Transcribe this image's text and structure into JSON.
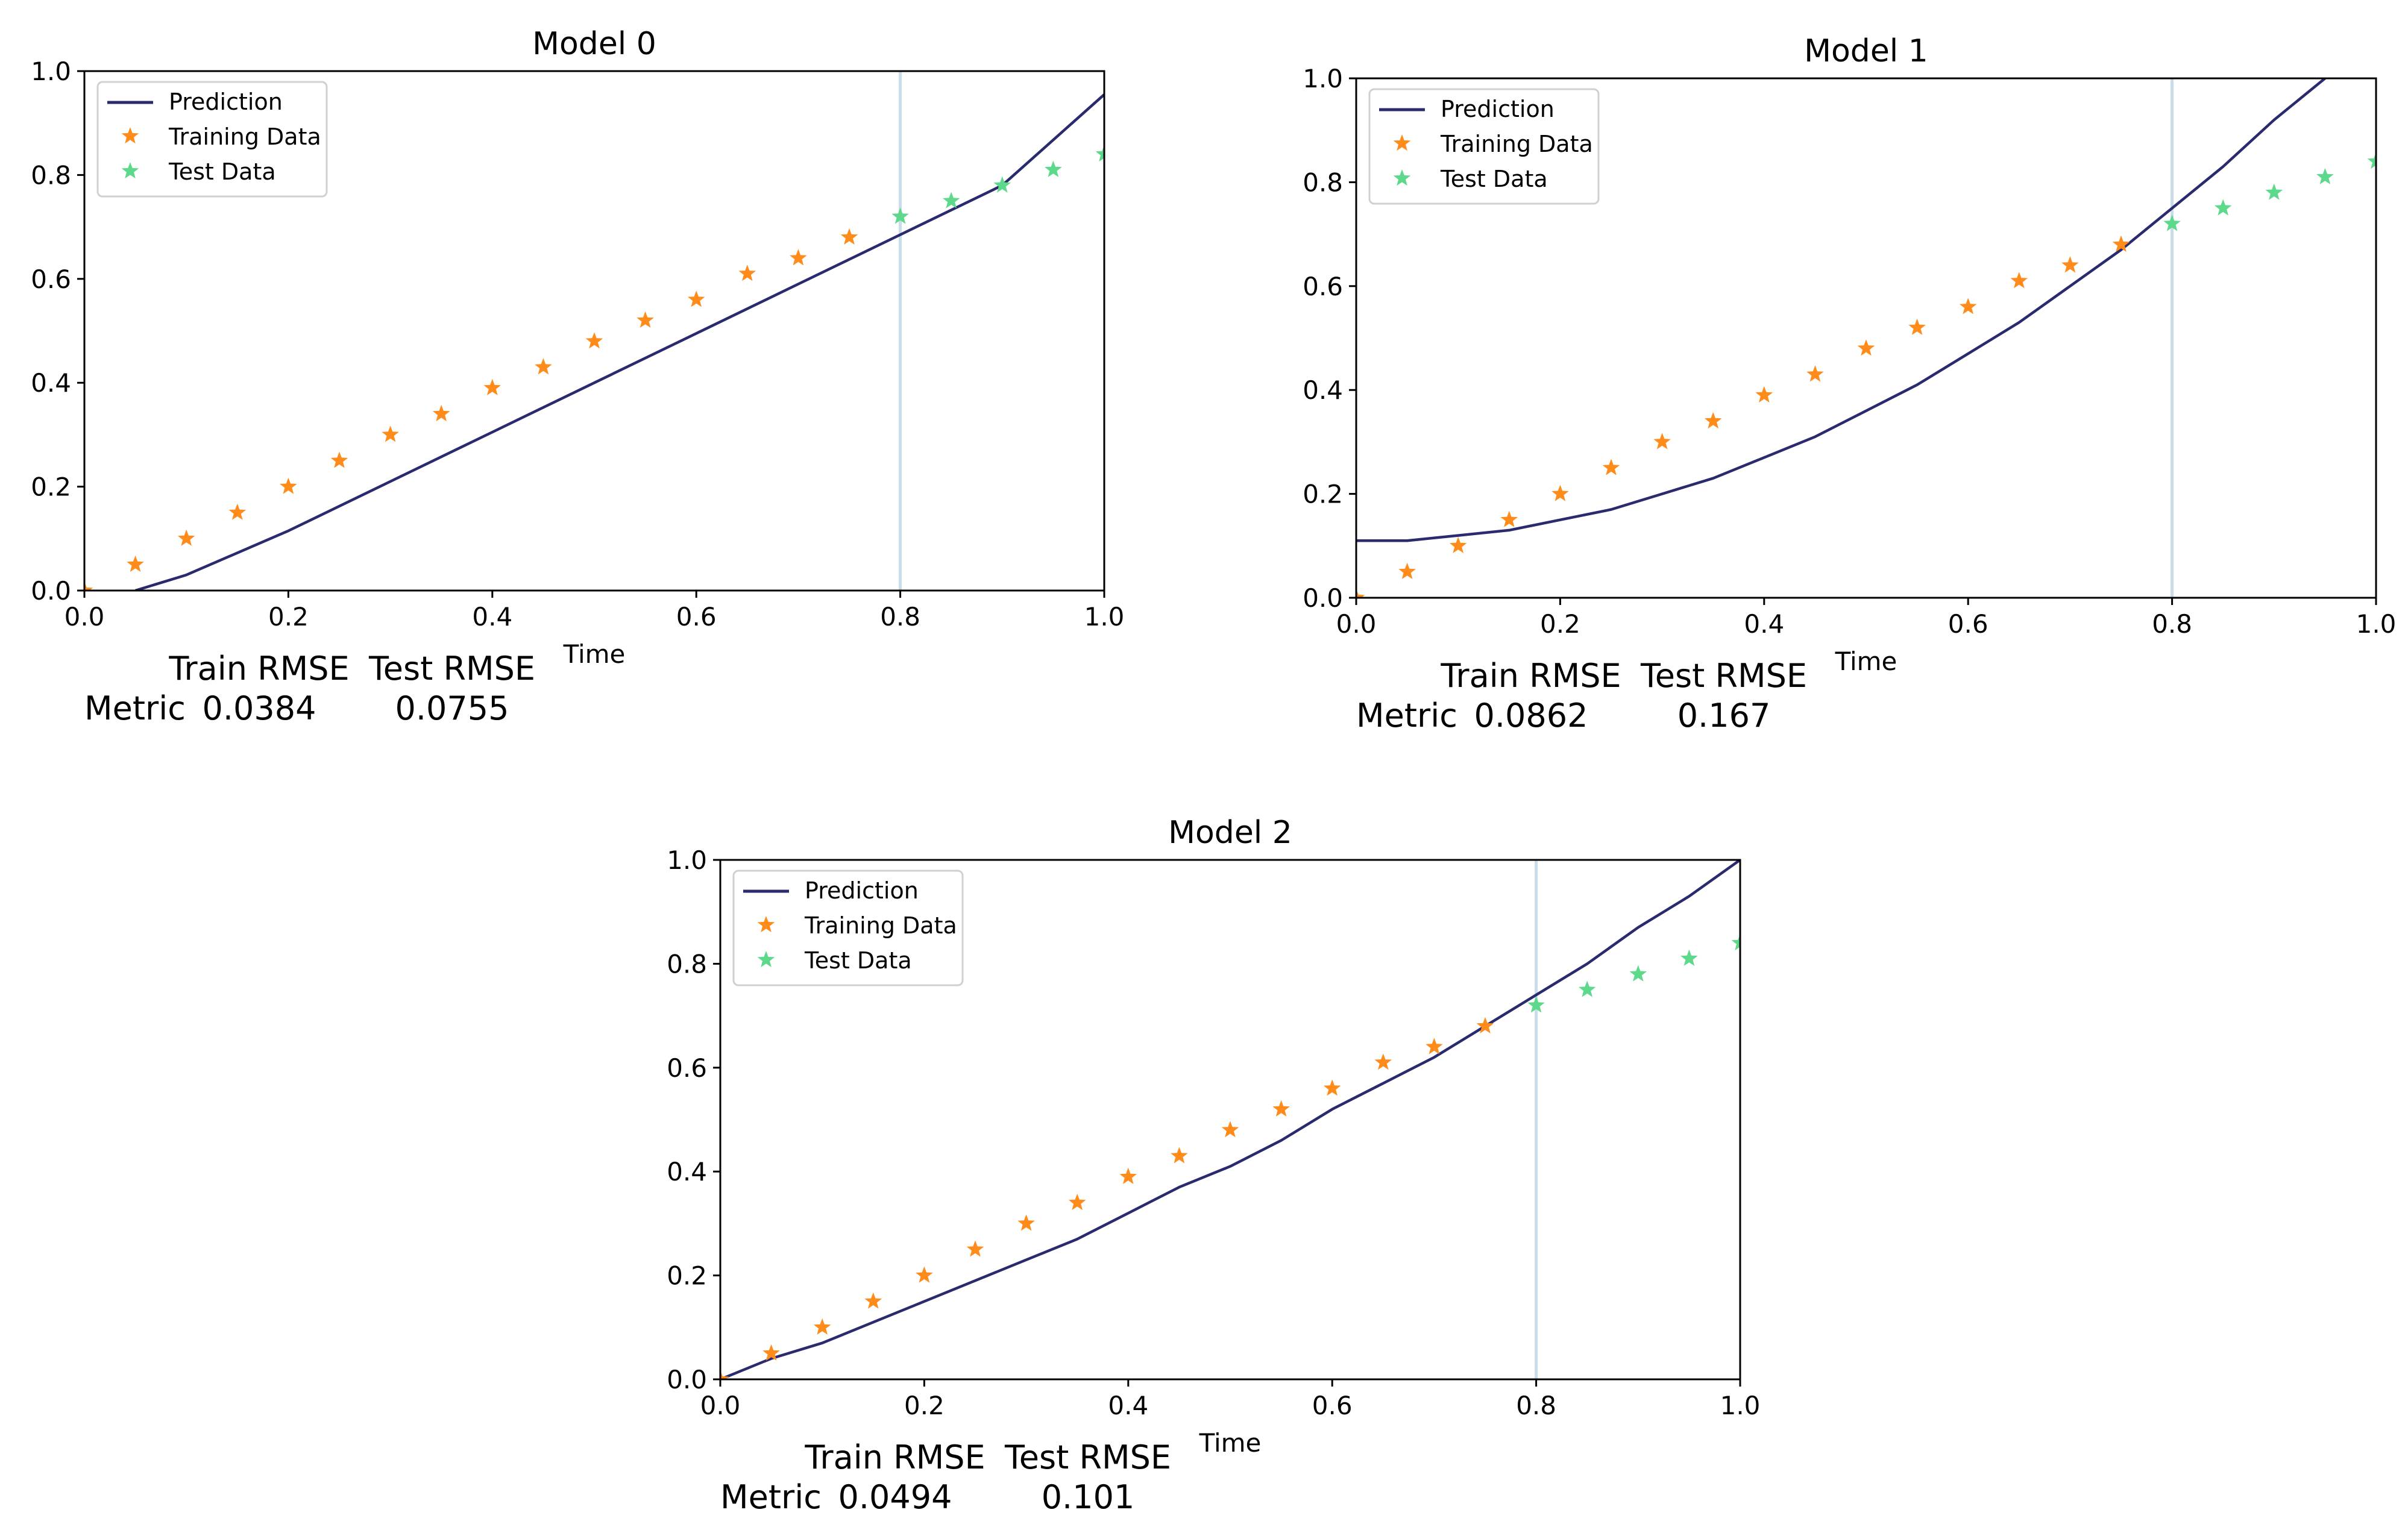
{
  "chart_data": [
    {
      "type": "line",
      "title": "Model 0",
      "xlabel": "Time",
      "ylabel": "",
      "xlim": [
        0.0,
        1.0
      ],
      "ylim": [
        0.0,
        1.0
      ],
      "xticks": [
        "0.0",
        "0.2",
        "0.4",
        "0.6",
        "0.8",
        "1.0"
      ],
      "yticks": [
        "0.0",
        "0.2",
        "0.4",
        "0.6",
        "0.8",
        "1.0"
      ],
      "split_x": 0.8,
      "legend": {
        "location": "upper-left",
        "entries": [
          "Prediction",
          "Training Data",
          "Test Data"
        ]
      },
      "series": [
        {
          "name": "Prediction",
          "kind": "line",
          "color": "#2a2a6e",
          "x": [
            0.05,
            0.1,
            0.2,
            0.3,
            0.4,
            0.5,
            0.6,
            0.7,
            0.8,
            0.9,
            1.0
          ],
          "y": [
            0.0,
            0.03,
            0.115,
            0.21,
            0.305,
            0.4,
            0.495,
            0.59,
            0.685,
            0.78,
            0.955
          ]
        },
        {
          "name": "Training Data",
          "kind": "scatter",
          "color": "#ff8c1a",
          "x": [
            0.0,
            0.05,
            0.1,
            0.15,
            0.2,
            0.25,
            0.3,
            0.35,
            0.4,
            0.45,
            0.5,
            0.55,
            0.6,
            0.65,
            0.7,
            0.75
          ],
          "y": [
            0.0,
            0.05,
            0.1,
            0.15,
            0.2,
            0.25,
            0.3,
            0.34,
            0.39,
            0.43,
            0.48,
            0.52,
            0.56,
            0.61,
            0.64,
            0.68
          ]
        },
        {
          "name": "Test Data",
          "kind": "scatter",
          "color": "#5cd98a",
          "x": [
            0.8,
            0.85,
            0.9,
            0.95,
            1.0
          ],
          "y": [
            0.72,
            0.75,
            0.78,
            0.81,
            0.84
          ]
        }
      ],
      "metrics_table": {
        "columns": [
          "Train RMSE",
          "Test RMSE"
        ],
        "row_label": "Metric",
        "values": [
          "0.0384",
          "0.0755"
        ]
      }
    },
    {
      "type": "line",
      "title": "Model 1",
      "xlabel": "Time",
      "ylabel": "",
      "xlim": [
        0.0,
        1.0
      ],
      "ylim": [
        0.0,
        1.0
      ],
      "xticks": [
        "0.0",
        "0.2",
        "0.4",
        "0.6",
        "0.8",
        "1.0"
      ],
      "yticks": [
        "0.0",
        "0.2",
        "0.4",
        "0.6",
        "0.8",
        "1.0"
      ],
      "split_x": 0.8,
      "legend": {
        "location": "upper-left",
        "entries": [
          "Prediction",
          "Training Data",
          "Test Data"
        ]
      },
      "series": [
        {
          "name": "Prediction",
          "kind": "line",
          "color": "#2a2a6e",
          "x": [
            0.0,
            0.05,
            0.1,
            0.15,
            0.2,
            0.25,
            0.3,
            0.35,
            0.4,
            0.45,
            0.5,
            0.55,
            0.6,
            0.65,
            0.7,
            0.75,
            0.8,
            0.85,
            0.9,
            0.95
          ],
          "y": [
            0.11,
            0.11,
            0.12,
            0.13,
            0.15,
            0.17,
            0.2,
            0.23,
            0.27,
            0.31,
            0.36,
            0.41,
            0.47,
            0.53,
            0.6,
            0.67,
            0.75,
            0.83,
            0.92,
            1.0
          ]
        },
        {
          "name": "Training Data",
          "kind": "scatter",
          "color": "#ff8c1a",
          "x": [
            0.0,
            0.05,
            0.1,
            0.15,
            0.2,
            0.25,
            0.3,
            0.35,
            0.4,
            0.45,
            0.5,
            0.55,
            0.6,
            0.65,
            0.7,
            0.75
          ],
          "y": [
            0.0,
            0.05,
            0.1,
            0.15,
            0.2,
            0.25,
            0.3,
            0.34,
            0.39,
            0.43,
            0.48,
            0.52,
            0.56,
            0.61,
            0.64,
            0.68
          ]
        },
        {
          "name": "Test Data",
          "kind": "scatter",
          "color": "#5cd98a",
          "x": [
            0.8,
            0.85,
            0.9,
            0.95,
            1.0
          ],
          "y": [
            0.72,
            0.75,
            0.78,
            0.81,
            0.84
          ]
        }
      ],
      "metrics_table": {
        "columns": [
          "Train RMSE",
          "Test RMSE"
        ],
        "row_label": "Metric",
        "values": [
          "0.0862",
          "0.167"
        ]
      }
    },
    {
      "type": "line",
      "title": "Model 2",
      "xlabel": "Time",
      "ylabel": "",
      "xlim": [
        0.0,
        1.0
      ],
      "ylim": [
        0.0,
        1.0
      ],
      "xticks": [
        "0.0",
        "0.2",
        "0.4",
        "0.6",
        "0.8",
        "1.0"
      ],
      "yticks": [
        "0.0",
        "0.2",
        "0.4",
        "0.6",
        "0.8",
        "1.0"
      ],
      "split_x": 0.8,
      "legend": {
        "location": "upper-left",
        "entries": [
          "Prediction",
          "Training Data",
          "Test Data"
        ]
      },
      "series": [
        {
          "name": "Prediction",
          "kind": "line",
          "color": "#2a2a6e",
          "x": [
            0.0,
            0.05,
            0.1,
            0.15,
            0.2,
            0.25,
            0.3,
            0.35,
            0.4,
            0.45,
            0.5,
            0.55,
            0.6,
            0.65,
            0.7,
            0.75,
            0.8,
            0.85,
            0.9,
            0.95,
            1.0
          ],
          "y": [
            0.0,
            0.04,
            0.07,
            0.11,
            0.15,
            0.19,
            0.23,
            0.27,
            0.32,
            0.37,
            0.41,
            0.46,
            0.52,
            0.57,
            0.62,
            0.68,
            0.74,
            0.8,
            0.87,
            0.93,
            1.0
          ]
        },
        {
          "name": "Training Data",
          "kind": "scatter",
          "color": "#ff8c1a",
          "x": [
            0.0,
            0.05,
            0.1,
            0.15,
            0.2,
            0.25,
            0.3,
            0.35,
            0.4,
            0.45,
            0.5,
            0.55,
            0.6,
            0.65,
            0.7,
            0.75
          ],
          "y": [
            0.0,
            0.05,
            0.1,
            0.15,
            0.2,
            0.25,
            0.3,
            0.34,
            0.39,
            0.43,
            0.48,
            0.52,
            0.56,
            0.61,
            0.64,
            0.68
          ]
        },
        {
          "name": "Test Data",
          "kind": "scatter",
          "color": "#5cd98a",
          "x": [
            0.8,
            0.85,
            0.9,
            0.95,
            1.0
          ],
          "y": [
            0.72,
            0.75,
            0.78,
            0.81,
            0.84
          ]
        }
      ],
      "metrics_table": {
        "columns": [
          "Train RMSE",
          "Test RMSE"
        ],
        "row_label": "Metric",
        "values": [
          "0.0494",
          "0.101"
        ]
      }
    }
  ],
  "colors": {
    "split_line": "#c9dcea",
    "axes": "#000000",
    "legend_border": "#d0d0d0"
  }
}
